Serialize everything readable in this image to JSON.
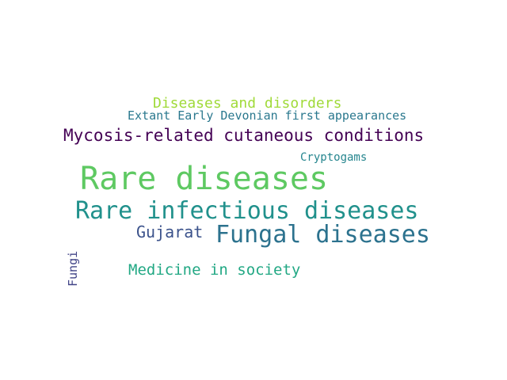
{
  "words": [
    {
      "id": "diseases_disorders",
      "text": "Diseases and disorders",
      "color": "#a0da39"
    },
    {
      "id": "devonian",
      "text": "Extant Early Devonian first appearances",
      "color": "#2a788e"
    },
    {
      "id": "mycosis",
      "text": "Mycosis-related cutaneous conditions",
      "color": "#440154"
    },
    {
      "id": "cryptogams",
      "text": "Cryptogams",
      "color": "#25858e"
    },
    {
      "id": "rare_diseases",
      "text": "Rare diseases",
      "color": "#5ec962"
    },
    {
      "id": "rare_infectious",
      "text": "Rare infectious diseases",
      "color": "#21918c"
    },
    {
      "id": "gujarat",
      "text": "Gujarat",
      "color": "#3b528b"
    },
    {
      "id": "fungal",
      "text": "Fungal diseases",
      "color": "#2c728e"
    },
    {
      "id": "fungi",
      "text": "Fungi",
      "color": "#414487"
    },
    {
      "id": "medicine",
      "text": "Medicine in society",
      "color": "#22a884"
    }
  ]
}
